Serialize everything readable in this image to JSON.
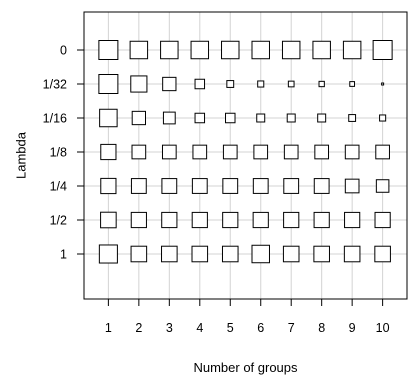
{
  "chart_data": {
    "type": "scatter",
    "xlabel": "Number of groups",
    "ylabel": "Lambda",
    "x_ticks": [
      "1",
      "2",
      "3",
      "4",
      "5",
      "6",
      "7",
      "8",
      "9",
      "10"
    ],
    "y_ticks": [
      "0",
      "1/32",
      "1/16",
      "1/8",
      "1/4",
      "1/2",
      "1"
    ],
    "x_range": [
      0.2,
      10.8
    ],
    "grid": true,
    "legend": "none",
    "marker": "open-square",
    "marker_color": "#000000",
    "grid_color": "#d3d3d3",
    "series": [
      {
        "y_label": "0",
        "sizes": [
          1.0,
          0.92,
          0.92,
          0.92,
          0.92,
          0.92,
          0.92,
          0.92,
          0.92,
          1.0
        ]
      },
      {
        "y_label": "1/32",
        "sizes": [
          1.0,
          0.85,
          0.7,
          0.5,
          0.36,
          0.32,
          0.3,
          0.28,
          0.25,
          0.1
        ]
      },
      {
        "y_label": "1/16",
        "sizes": [
          0.92,
          0.7,
          0.62,
          0.5,
          0.5,
          0.42,
          0.42,
          0.42,
          0.36,
          0.32
        ]
      },
      {
        "y_label": "1/8",
        "sizes": [
          0.8,
          0.72,
          0.72,
          0.72,
          0.72,
          0.72,
          0.72,
          0.72,
          0.72,
          0.72
        ]
      },
      {
        "y_label": "1/4",
        "sizes": [
          0.8,
          0.78,
          0.78,
          0.78,
          0.78,
          0.78,
          0.78,
          0.78,
          0.72,
          0.66
        ]
      },
      {
        "y_label": "1/2",
        "sizes": [
          0.82,
          0.8,
          0.8,
          0.8,
          0.8,
          0.8,
          0.8,
          0.8,
          0.8,
          0.8
        ]
      },
      {
        "y_label": "1",
        "sizes": [
          0.95,
          0.82,
          0.82,
          0.82,
          0.82,
          0.92,
          0.82,
          0.82,
          0.82,
          0.82
        ]
      }
    ]
  }
}
